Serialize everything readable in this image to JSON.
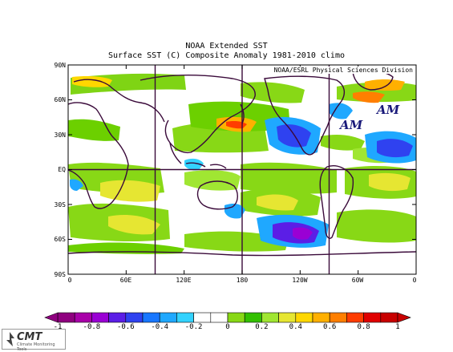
{
  "title": "NOAA Extended SST",
  "subtitle": "Surface SST (C) Composite Anomaly 1981-2010 climo",
  "credit": "NOAA/ESRL Physical Sciences Division",
  "lat_labels": [
    "90N",
    "60N",
    "30N",
    "EQ",
    "30S",
    "60S",
    "90S"
  ],
  "lon_labels": [
    "0",
    "60E",
    "120E",
    "180",
    "120W",
    "60W",
    "0"
  ],
  "annotations": [
    "AM",
    "AM"
  ],
  "colorbar": {
    "labels": [
      "-1",
      "-0.8",
      "-0.6",
      "-0.4",
      "-0.2",
      "0",
      "0.2",
      "0.4",
      "0.6",
      "0.8",
      "1"
    ],
    "colors": [
      "#8f007f",
      "#a800a8",
      "#9a00d4",
      "#5b1ee6",
      "#2f42f0",
      "#1877ff",
      "#1fa8ff",
      "#33d2ff",
      "#ffffff",
      "#ffffff",
      "#88d816",
      "#33c000",
      "#a0e632",
      "#e6e632",
      "#ffd700",
      "#ffb000",
      "#ff7f00",
      "#ff3c00",
      "#e00000",
      "#c80000"
    ]
  },
  "logo": {
    "text": "CMT",
    "subtext": "Climate Monitoring Tools"
  }
}
